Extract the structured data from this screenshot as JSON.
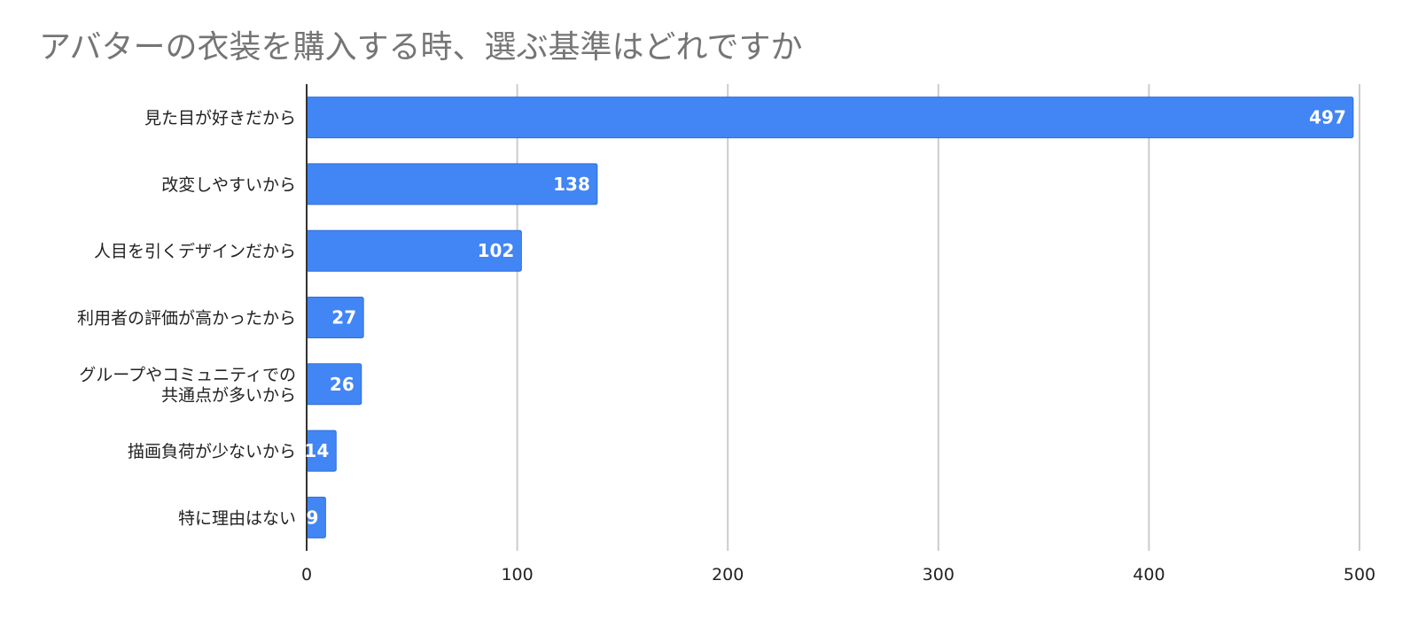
{
  "chart_data": {
    "type": "bar",
    "orientation": "horizontal",
    "title": "アバターの衣装を購入する時、選ぶ基準はどれですか",
    "categories": [
      "見た目が好きだから",
      "改変しやすいから",
      "人目を引くデザインだから",
      "利用者の評価が高かったから",
      "グループやコミュニティでの共通点が多いから",
      "描画負荷が少ないから",
      "特に理由はない"
    ],
    "category_lines": [
      [
        "見た目が好きだから"
      ],
      [
        "改変しやすいから"
      ],
      [
        "人目を引くデザインだから"
      ],
      [
        "利用者の評価が高かったから"
      ],
      [
        "グループやコミュニティでの",
        "共通点が多いから"
      ],
      [
        "描画負荷が少ないから"
      ],
      [
        "特に理由はない"
      ]
    ],
    "values": [
      497,
      138,
      102,
      27,
      26,
      14,
      9
    ],
    "xlim": [
      0,
      500
    ],
    "xticks": [
      0,
      100,
      200,
      300,
      400,
      500
    ],
    "xticks_labels": [
      "0",
      "100",
      "200",
      "300",
      "400",
      "500"
    ],
    "data_labels_shown": true,
    "grid": "vertical",
    "legend": "none",
    "colors": {
      "bar": "#4285f4",
      "bar_border": "#2f6ed6",
      "grid": "#cccccc",
      "axis": "#333333",
      "title": "#757575",
      "text": "#222222",
      "data_label": "#ffffff"
    }
  }
}
